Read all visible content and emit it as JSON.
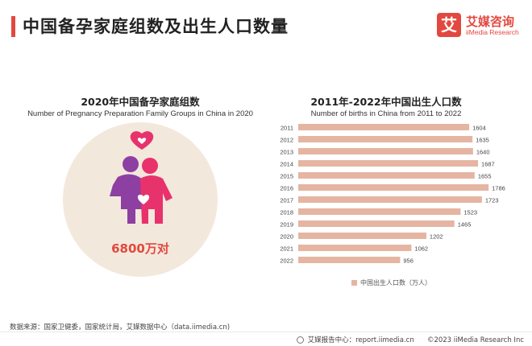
{
  "header": {
    "title": "中国备孕家庭组数及出生人口数量"
  },
  "logo": {
    "mark": "艾",
    "name_cn": "艾媒咨询",
    "name_en": "iiMedia Research"
  },
  "left_panel": {
    "title_cn": "2020年中国备孕家庭组数",
    "title_en": "Number of Pregnancy Preparation Family Groups in China in 2020",
    "stat_value": "6800万对",
    "icon": "family-icon"
  },
  "chart_data": {
    "type": "bar",
    "orientation": "horizontal",
    "title": "2011年-2022年中国出生人口数",
    "subtitle": "Number of births in China from 2011 to 2022",
    "categories": [
      "2011",
      "2012",
      "2013",
      "2014",
      "2015",
      "2016",
      "2017",
      "2018",
      "2019",
      "2020",
      "2021",
      "2022"
    ],
    "series": [
      {
        "name": "中国出生人口数（万人）",
        "values": [
          1604,
          1635,
          1640,
          1687,
          1655,
          1786,
          1723,
          1523,
          1465,
          1202,
          1062,
          956
        ],
        "color": "#e5b5a2"
      }
    ],
    "xlim": [
      0,
      1800
    ],
    "grid": false,
    "legend_position": "bottom"
  },
  "footer": {
    "source": "数据来源：国家卫健委，国家统计局，艾媒数据中心（data.iimedia.cn)",
    "report_center": "艾媒报告中心：report.iimedia.cn",
    "copyright": "©2023  iiMedia Research  Inc"
  },
  "colors": {
    "accent": "#e2483f",
    "bar": "#e5b5a2",
    "circle_bg": "#f3e8dc",
    "figure_purple": "#8e3fa2",
    "figure_pink": "#e8326c"
  }
}
